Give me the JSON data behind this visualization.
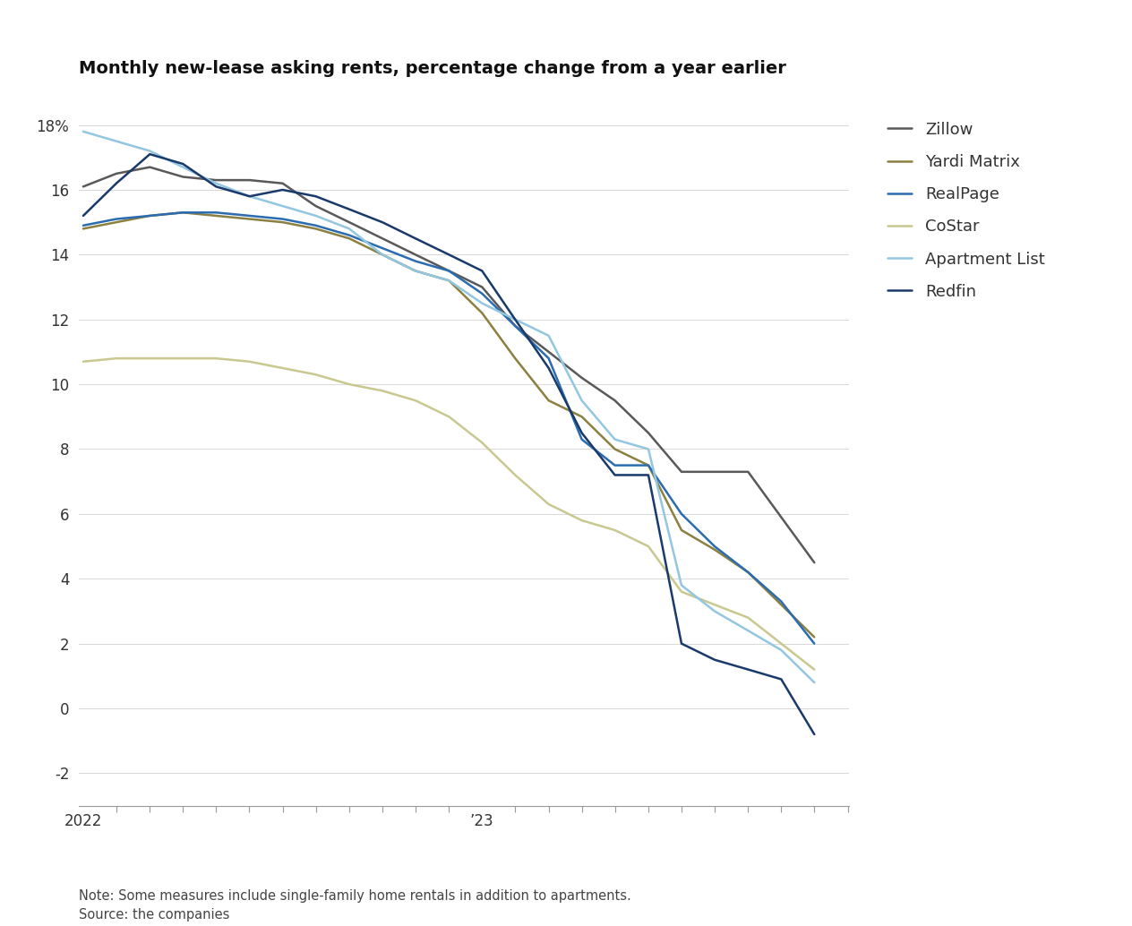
{
  "title": "Monthly new-lease asking rents, percentage change from a year earlier",
  "note": "Note: Some measures include single-family home rentals in addition to apartments.\nSource: the companies",
  "ylim": [
    -3,
    19
  ],
  "yticks": [
    -2,
    0,
    2,
    4,
    6,
    8,
    10,
    12,
    14,
    16,
    18
  ],
  "series": {
    "Zillow": {
      "color": "#595959",
      "linewidth": 1.8,
      "x": [
        2022.0,
        2022.083,
        2022.167,
        2022.25,
        2022.333,
        2022.417,
        2022.5,
        2022.583,
        2022.667,
        2022.75,
        2022.833,
        2022.917,
        2023.0,
        2023.083,
        2023.167,
        2023.25,
        2023.333,
        2023.417,
        2023.5,
        2023.583,
        2023.667,
        2023.75,
        2023.833
      ],
      "y": [
        16.1,
        16.5,
        16.7,
        16.4,
        16.3,
        16.3,
        16.2,
        15.5,
        15.0,
        14.5,
        14.0,
        13.5,
        13.0,
        11.8,
        11.0,
        10.2,
        9.5,
        8.5,
        7.3,
        7.3,
        7.3,
        5.9,
        4.5
      ]
    },
    "Yardi Matrix": {
      "color": "#8B8040",
      "linewidth": 1.8,
      "x": [
        2022.0,
        2022.083,
        2022.167,
        2022.25,
        2022.333,
        2022.417,
        2022.5,
        2022.583,
        2022.667,
        2022.75,
        2022.833,
        2022.917,
        2023.0,
        2023.083,
        2023.167,
        2023.25,
        2023.333,
        2023.417,
        2023.5,
        2023.583,
        2023.667,
        2023.75,
        2023.833
      ],
      "y": [
        14.8,
        15.0,
        15.2,
        15.3,
        15.2,
        15.1,
        15.0,
        14.8,
        14.5,
        14.0,
        13.5,
        13.2,
        12.2,
        10.8,
        9.5,
        9.0,
        8.0,
        7.5,
        5.5,
        4.9,
        4.2,
        3.2,
        2.2
      ]
    },
    "RealPage": {
      "color": "#2B6CB0",
      "linewidth": 1.8,
      "x": [
        2022.0,
        2022.083,
        2022.167,
        2022.25,
        2022.333,
        2022.417,
        2022.5,
        2022.583,
        2022.667,
        2022.75,
        2022.833,
        2022.917,
        2023.0,
        2023.083,
        2023.167,
        2023.25,
        2023.333,
        2023.417,
        2023.5,
        2023.583,
        2023.667,
        2023.75,
        2023.833
      ],
      "y": [
        14.9,
        15.1,
        15.2,
        15.3,
        15.3,
        15.2,
        15.1,
        14.9,
        14.6,
        14.2,
        13.8,
        13.5,
        12.8,
        11.8,
        10.8,
        8.3,
        7.5,
        7.5,
        6.0,
        5.0,
        4.2,
        3.3,
        2.0
      ]
    },
    "CoStar": {
      "color": "#C8C890",
      "linewidth": 1.8,
      "x": [
        2022.0,
        2022.083,
        2022.167,
        2022.25,
        2022.333,
        2022.417,
        2022.5,
        2022.583,
        2022.667,
        2022.75,
        2022.833,
        2022.917,
        2023.0,
        2023.083,
        2023.167,
        2023.25,
        2023.333,
        2023.417,
        2023.5,
        2023.583,
        2023.667,
        2023.75,
        2023.833
      ],
      "y": [
        10.7,
        10.8,
        10.8,
        10.8,
        10.8,
        10.7,
        10.5,
        10.3,
        10.0,
        9.8,
        9.5,
        9.0,
        8.2,
        7.2,
        6.3,
        5.8,
        5.5,
        5.0,
        3.6,
        3.2,
        2.8,
        2.0,
        1.2
      ]
    },
    "Apartment List": {
      "color": "#93C6E0",
      "linewidth": 1.8,
      "x": [
        2022.0,
        2022.083,
        2022.167,
        2022.25,
        2022.333,
        2022.417,
        2022.5,
        2022.583,
        2022.667,
        2022.75,
        2022.833,
        2022.917,
        2023.0,
        2023.083,
        2023.167,
        2023.25,
        2023.333,
        2023.417,
        2023.5,
        2023.583,
        2023.667,
        2023.75,
        2023.833
      ],
      "y": [
        17.8,
        17.5,
        17.2,
        16.7,
        16.2,
        15.8,
        15.5,
        15.2,
        14.8,
        14.0,
        13.5,
        13.2,
        12.5,
        12.0,
        11.5,
        9.5,
        8.3,
        8.0,
        3.8,
        3.0,
        2.4,
        1.8,
        0.8
      ]
    },
    "Redfin": {
      "color": "#1A3A6B",
      "linewidth": 1.8,
      "x": [
        2022.0,
        2022.083,
        2022.167,
        2022.25,
        2022.333,
        2022.417,
        2022.5,
        2022.583,
        2022.667,
        2022.75,
        2022.833,
        2022.917,
        2023.0,
        2023.083,
        2023.167,
        2023.25,
        2023.333,
        2023.417,
        2023.5,
        2023.583,
        2023.667,
        2023.75,
        2023.833
      ],
      "y": [
        15.2,
        16.2,
        17.1,
        16.8,
        16.1,
        15.8,
        16.0,
        15.8,
        15.4,
        15.0,
        14.5,
        14.0,
        13.5,
        12.0,
        10.5,
        8.5,
        7.2,
        7.2,
        2.0,
        1.5,
        1.2,
        0.9,
        -0.8
      ]
    }
  },
  "legend_order": [
    "Zillow",
    "Yardi Matrix",
    "RealPage",
    "CoStar",
    "Apartment List",
    "Redfin"
  ],
  "background_color": "#FFFFFF",
  "grid_color": "#D8D8D8",
  "title_fontsize": 14,
  "tick_fontsize": 12,
  "legend_fontsize": 13,
  "note_fontsize": 10.5
}
